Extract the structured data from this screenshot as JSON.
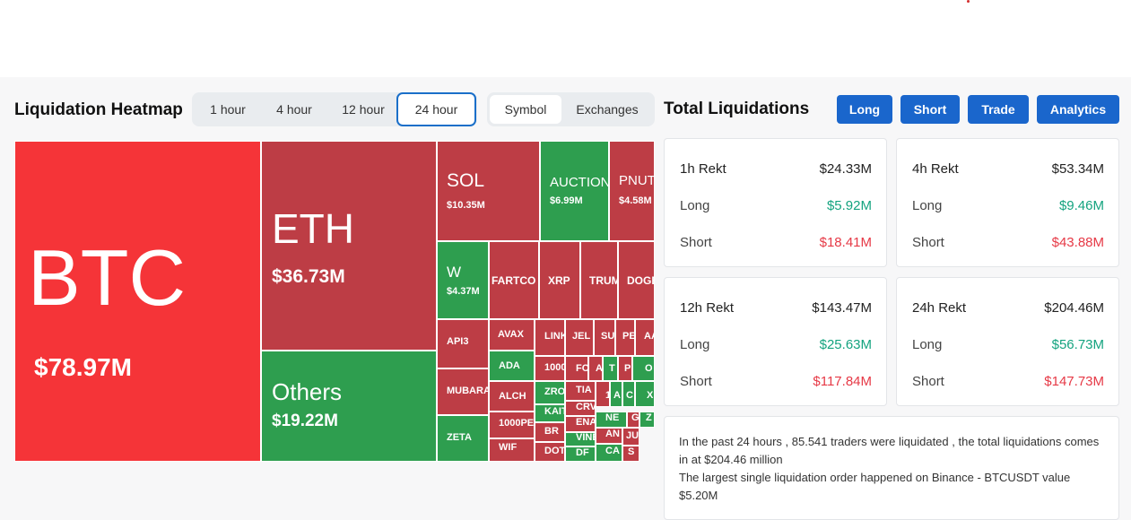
{
  "heatmap": {
    "title": "Liquidation Heatmap",
    "time_tabs": [
      "1 hour",
      "4 hour",
      "12 hour",
      "24 hour"
    ],
    "active_time_tab": "24 hour",
    "view_tabs": [
      "Symbol",
      "Exchanges"
    ],
    "active_view_tab": "Symbol",
    "cells": [
      {
        "symbol": "BTC",
        "value": "$78.97M",
        "color": "#f53438"
      },
      {
        "symbol": "ETH",
        "value": "$36.73M",
        "color": "#bd3d45"
      },
      {
        "symbol": "Others",
        "value": "$19.22M",
        "color": "#2e9e4f"
      },
      {
        "symbol": "SOL",
        "value": "$10.35M",
        "color": "#bd3d45"
      },
      {
        "symbol": "AUCTION",
        "value": "$6.99M",
        "color": "#2e9e4f"
      },
      {
        "symbol": "PNUT",
        "value": "$4.58M",
        "color": "#bd3d45"
      },
      {
        "symbol": "W",
        "value": "$4.37M",
        "color": "#2e9e4f"
      },
      {
        "symbol": "FARTCO",
        "value": "",
        "color": "#bd3d45"
      },
      {
        "symbol": "XRP",
        "value": "",
        "color": "#bd3d45"
      },
      {
        "symbol": "TRUM",
        "value": "",
        "color": "#bd3d45"
      },
      {
        "symbol": "DOGE",
        "value": "",
        "color": "#bd3d45"
      },
      {
        "symbol": "API3",
        "value": "",
        "color": "#bd3d45"
      },
      {
        "symbol": "AVAX",
        "value": "",
        "color": "#bd3d45"
      },
      {
        "symbol": "LINK",
        "value": "",
        "color": "#bd3d45"
      },
      {
        "symbol": "JEL",
        "value": "",
        "color": "#bd3d45"
      },
      {
        "symbol": "SU",
        "value": "",
        "color": "#bd3d45"
      },
      {
        "symbol": "PE",
        "value": "",
        "color": "#bd3d45"
      },
      {
        "symbol": "AA",
        "value": "",
        "color": "#bd3d45"
      },
      {
        "symbol": "ADA",
        "value": "",
        "color": "#2e9e4f"
      },
      {
        "symbol": "1000",
        "value": "",
        "color": "#bd3d45"
      },
      {
        "symbol": "FC",
        "value": "",
        "color": "#bd3d45"
      },
      {
        "symbol": "A",
        "value": "",
        "color": "#bd3d45"
      },
      {
        "symbol": "T",
        "value": "",
        "color": "#2e9e4f"
      },
      {
        "symbol": "P",
        "value": "",
        "color": "#bd3d45"
      },
      {
        "symbol": "O",
        "value": "",
        "color": "#2e9e4f"
      },
      {
        "symbol": "MUBARA",
        "value": "",
        "color": "#bd3d45"
      },
      {
        "symbol": "ALCH",
        "value": "",
        "color": "#bd3d45"
      },
      {
        "symbol": "ZRO",
        "value": "",
        "color": "#2e9e4f"
      },
      {
        "symbol": "TIA",
        "value": "",
        "color": "#bd3d45"
      },
      {
        "symbol": "1",
        "value": "",
        "color": "#bd3d45"
      },
      {
        "symbol": "A",
        "value": "",
        "color": "#2e9e4f"
      },
      {
        "symbol": "C",
        "value": "",
        "color": "#2e9e4f"
      },
      {
        "symbol": "X",
        "value": "",
        "color": "#2e9e4f"
      },
      {
        "symbol": "KAIT",
        "value": "",
        "color": "#2e9e4f"
      },
      {
        "symbol": "CRV",
        "value": "",
        "color": "#bd3d45"
      },
      {
        "symbol": "1000PE",
        "value": "",
        "color": "#bd3d45"
      },
      {
        "symbol": "ENA",
        "value": "",
        "color": "#bd3d45"
      },
      {
        "symbol": "NE",
        "value": "",
        "color": "#2e9e4f"
      },
      {
        "symbol": "G",
        "value": "",
        "color": "#bd3d45"
      },
      {
        "symbol": "Z",
        "value": "",
        "color": "#2e9e4f"
      },
      {
        "symbol": "ZETA",
        "value": "",
        "color": "#2e9e4f"
      },
      {
        "symbol": "BR",
        "value": "",
        "color": "#bd3d45"
      },
      {
        "symbol": "VINE",
        "value": "",
        "color": "#2e9e4f"
      },
      {
        "symbol": "AN",
        "value": "",
        "color": "#bd3d45"
      },
      {
        "symbol": "JU",
        "value": "",
        "color": "#bd3d45"
      },
      {
        "symbol": "WIF",
        "value": "",
        "color": "#bd3d45"
      },
      {
        "symbol": "DOT",
        "value": "",
        "color": "#bd3d45"
      },
      {
        "symbol": "DF",
        "value": "",
        "color": "#2e9e4f"
      },
      {
        "symbol": "CA",
        "value": "",
        "color": "#2e9e4f"
      },
      {
        "symbol": "S",
        "value": "",
        "color": "#bd3d45"
      }
    ]
  },
  "total": {
    "title": "Total Liquidations",
    "buttons": [
      "Long",
      "Short",
      "Trade",
      "Analytics"
    ],
    "cards": [
      {
        "title": "1h Rekt",
        "total": "$24.33M",
        "long_label": "Long",
        "long": "$5.92M",
        "short_label": "Short",
        "short": "$18.41M"
      },
      {
        "title": "4h Rekt",
        "total": "$53.34M",
        "long_label": "Long",
        "long": "$9.46M",
        "short_label": "Short",
        "short": "$43.88M"
      },
      {
        "title": "12h Rekt",
        "total": "$143.47M",
        "long_label": "Long",
        "long": "$25.63M",
        "short_label": "Short",
        "short": "$117.84M"
      },
      {
        "title": "24h Rekt",
        "total": "$204.46M",
        "long_label": "Long",
        "long": "$56.73M",
        "short_label": "Short",
        "short": "$147.73M"
      }
    ],
    "info": [
      "In the past 24 hours , 85.541 traders were liquidated , the total liquidations comes in at $204.46 million",
      "The largest single liquidation order happened on Binance - BTCUSDT value $5.20M"
    ]
  },
  "colors": {
    "accent": "#1a66cc",
    "long": "#14a37f",
    "short": "#e63946",
    "heat_red": "#bd3d45",
    "heat_red_bright": "#f53438",
    "heat_green": "#2e9e4f"
  }
}
